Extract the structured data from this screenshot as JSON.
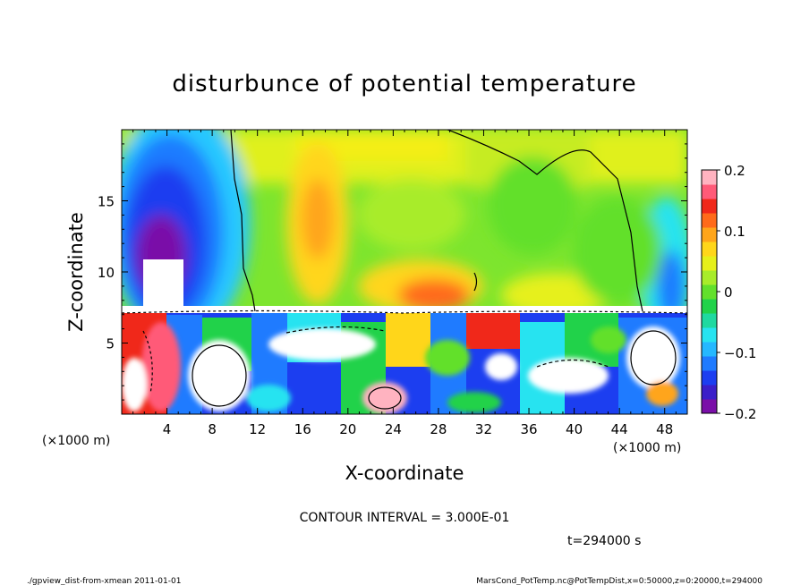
{
  "chart_data": {
    "type": "heatmap",
    "title": "disturbunce of potential temperature",
    "xlabel": "X-coordinate",
    "ylabel": "Z-coordinate",
    "x_unit": "(×1000 m)",
    "xlim": [
      0,
      50
    ],
    "ylim": [
      0,
      20
    ],
    "x_ticks": [
      "4",
      "8",
      "12",
      "16",
      "20",
      "24",
      "28",
      "32",
      "36",
      "40",
      "44",
      "48"
    ],
    "y_ticks": [
      "5",
      "10",
      "15"
    ],
    "colorbar": {
      "range": [
        -0.2,
        0.2
      ],
      "ticks": [
        "0.2",
        "0.1",
        "0",
        "−0.1",
        "−0.2"
      ],
      "colors": [
        "#7a0fa8",
        "#3b1fc9",
        "#1c3ef0",
        "#1f7bff",
        "#25b8ff",
        "#27e3f0",
        "#1fd9a0",
        "#21d24a",
        "#62e02c",
        "#a8ec2a",
        "#e6f01a",
        "#ffd61a",
        "#ffa51a",
        "#ff6a1a",
        "#f0281a",
        "#ff5a78",
        "#ffb3c0"
      ]
    },
    "grid": false,
    "legend": "colorbar-right"
  },
  "annotations": {
    "contour_interval": "CONTOUR INTERVAL = 3.000E-01",
    "time": "t=294000 s"
  },
  "footer": {
    "left": "./gpview_dist-from-xmean  2011-01-01",
    "right": "MarsCond_PotTemp.nc@PotTempDist,x=0:50000,z=0:20000,t=294000"
  }
}
